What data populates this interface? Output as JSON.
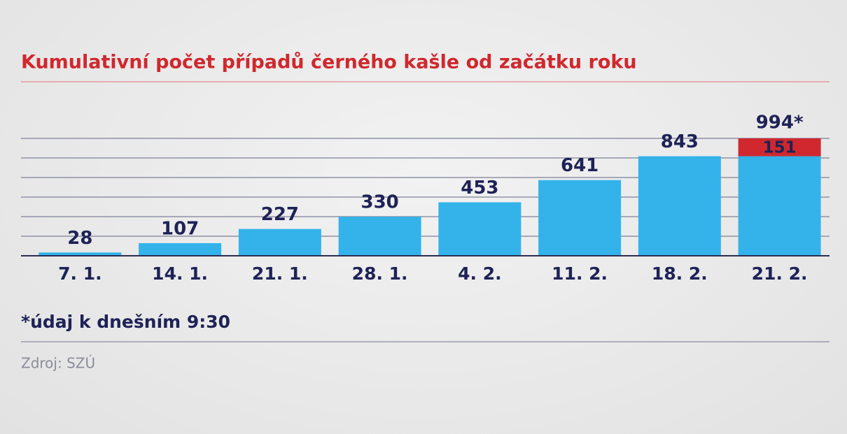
{
  "chart_data": {
    "type": "bar",
    "stacked": true,
    "title": "Kumulativní počet případů černého kašle od začátku roku",
    "categories": [
      "7. 1.",
      "14. 1.",
      "21. 1.",
      "28. 1.",
      "4. 2.",
      "11. 2.",
      "18. 2.",
      "21. 2."
    ],
    "series": [
      {
        "color": "#33b3ea",
        "values": [
          28,
          107,
          227,
          330,
          453,
          641,
          843,
          843
        ],
        "value_labels": [
          "28",
          "107",
          "227",
          "330",
          "453",
          "641",
          "843",
          null
        ]
      },
      {
        "color": "#d0282e",
        "values": [
          null,
          null,
          null,
          null,
          null,
          null,
          null,
          151
        ],
        "value_labels": [
          null,
          null,
          null,
          null,
          null,
          null,
          null,
          "151"
        ]
      }
    ],
    "total_label": {
      "value": 994,
      "label": "994*"
    },
    "ylim": [
      0,
      1000
    ],
    "note": "*údaj k dnešním 9:30",
    "source": "Zdroj: SZÚ"
  }
}
